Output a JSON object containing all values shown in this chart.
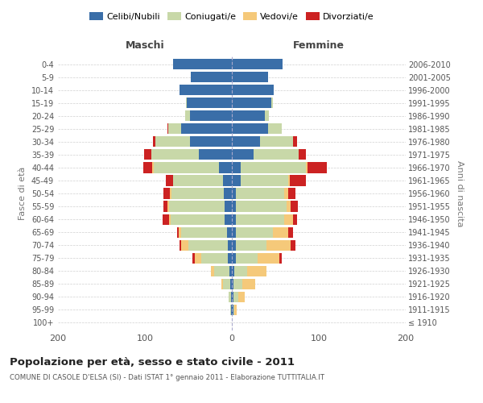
{
  "age_groups": [
    "100+",
    "95-99",
    "90-94",
    "85-89",
    "80-84",
    "75-79",
    "70-74",
    "65-69",
    "60-64",
    "55-59",
    "50-54",
    "45-49",
    "40-44",
    "35-39",
    "30-34",
    "25-29",
    "20-24",
    "15-19",
    "10-14",
    "5-9",
    "0-4"
  ],
  "birth_years": [
    "≤ 1910",
    "1911-1915",
    "1916-1920",
    "1921-1925",
    "1926-1930",
    "1931-1935",
    "1936-1940",
    "1941-1945",
    "1946-1950",
    "1951-1955",
    "1956-1960",
    "1961-1965",
    "1966-1970",
    "1971-1975",
    "1976-1980",
    "1981-1985",
    "1986-1990",
    "1991-1995",
    "1996-2000",
    "2001-2005",
    "2006-2010"
  ],
  "males": {
    "celibi": [
      0,
      1,
      1,
      2,
      3,
      5,
      5,
      6,
      8,
      8,
      9,
      10,
      15,
      38,
      48,
      58,
      48,
      52,
      60,
      47,
      68
    ],
    "coniugati": [
      0,
      1,
      3,
      8,
      17,
      30,
      45,
      52,
      62,
      64,
      60,
      58,
      75,
      55,
      40,
      15,
      6,
      1,
      0,
      0,
      0
    ],
    "vedovi": [
      0,
      0,
      0,
      2,
      4,
      8,
      8,
      3,
      2,
      2,
      2,
      0,
      2,
      0,
      0,
      0,
      0,
      0,
      0,
      0,
      0
    ],
    "divorziati": [
      0,
      0,
      0,
      0,
      0,
      2,
      2,
      2,
      8,
      5,
      8,
      8,
      10,
      8,
      3,
      1,
      0,
      0,
      0,
      0,
      0
    ]
  },
  "females": {
    "nubili": [
      0,
      2,
      2,
      2,
      3,
      5,
      5,
      5,
      5,
      5,
      5,
      10,
      10,
      25,
      32,
      42,
      38,
      45,
      48,
      42,
      58
    ],
    "coniugate": [
      0,
      1,
      5,
      10,
      15,
      25,
      35,
      42,
      55,
      58,
      55,
      55,
      75,
      52,
      38,
      15,
      5,
      2,
      0,
      0,
      0
    ],
    "vedove": [
      0,
      3,
      8,
      15,
      22,
      25,
      28,
      18,
      10,
      5,
      5,
      2,
      2,
      0,
      0,
      0,
      0,
      0,
      0,
      0,
      0
    ],
    "divorziate": [
      0,
      0,
      0,
      0,
      0,
      2,
      5,
      5,
      5,
      8,
      8,
      18,
      22,
      8,
      5,
      0,
      0,
      0,
      0,
      0,
      0
    ]
  },
  "colors": {
    "celibi": "#3a6ea8",
    "coniugati": "#c8d8a8",
    "vedovi": "#f5c97a",
    "divorziati": "#cc2222"
  },
  "title": "Popolazione per età, sesso e stato civile - 2011",
  "subtitle": "COMUNE DI CASOLE D'ELSA (SI) - Dati ISTAT 1° gennaio 2011 - Elaborazione TUTTITALIA.IT",
  "xlabel_left": "Maschi",
  "xlabel_right": "Femmine",
  "ylabel_left": "Fasce di età",
  "ylabel_right": "Anni di nascita",
  "xlim": 200,
  "background_color": "#ffffff",
  "grid_color": "#cccccc"
}
